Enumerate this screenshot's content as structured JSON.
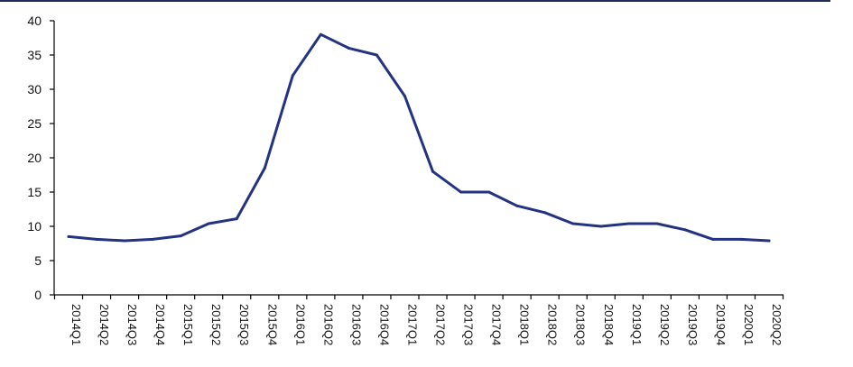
{
  "chart_data": {
    "type": "line",
    "categories": [
      "2014Q1",
      "2014Q2",
      "2014Q3",
      "2014Q4",
      "2015Q1",
      "2015Q2",
      "2015Q3",
      "2015Q4",
      "2016Q1",
      "2016Q2",
      "2016Q3",
      "2016Q4",
      "2017Q1",
      "2017Q2",
      "2017Q3",
      "2017Q4",
      "2018Q1",
      "2018Q2",
      "2018Q3",
      "2018Q4",
      "2019Q1",
      "2019Q2",
      "2019Q3",
      "2019Q4",
      "2020Q1",
      "2020Q2"
    ],
    "series": [
      {
        "values": [
          8.5,
          8.1,
          7.9,
          8.1,
          8.6,
          10.4,
          11.1,
          18.5,
          32.0,
          38.0,
          36.0,
          35.0,
          29.0,
          18.0,
          15.0,
          15.0,
          13.0,
          12.0,
          10.4,
          10.0,
          10.4,
          10.4,
          9.5,
          8.1,
          8.1,
          7.9
        ]
      }
    ],
    "yticks": [
      0,
      5,
      10,
      15,
      20,
      25,
      30,
      35,
      40
    ],
    "ylim": [
      0,
      40
    ],
    "title": "",
    "xlabel": "",
    "ylabel": "",
    "grid": false,
    "legend": "none",
    "colors": {
      "line": "#233382",
      "top_rule": "#1f2a5a",
      "axis": "#000000"
    }
  }
}
